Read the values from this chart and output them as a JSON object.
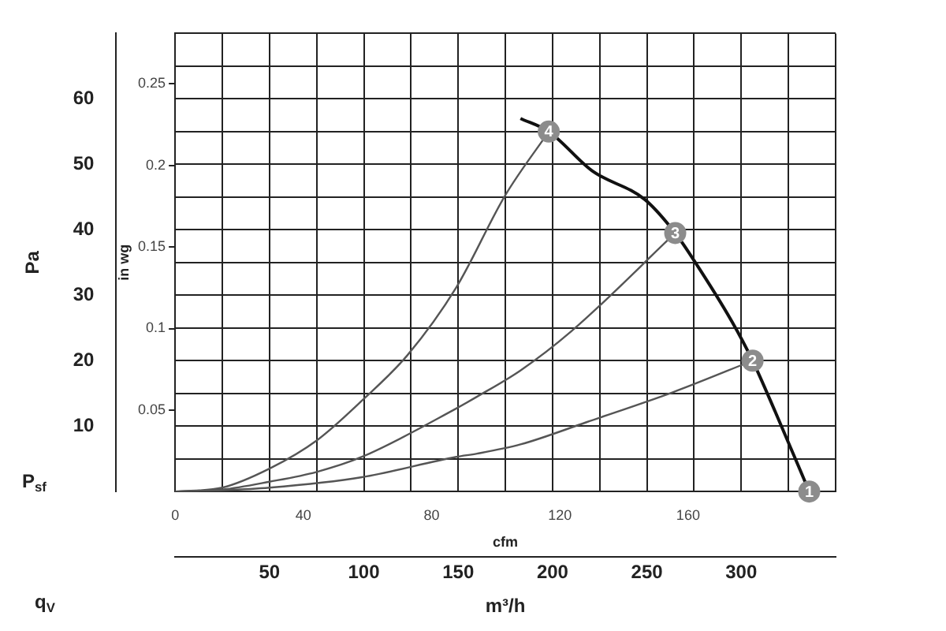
{
  "chart_data": {
    "type": "line",
    "xlabel": "m³/h",
    "x2label": "cfm",
    "ylabel": "Pa",
    "y2label": "in wg",
    "annotations": [
      "q$_{V}$",
      "P$_{sf}$",
      {
        "text": "1",
        "x": 336,
        "y": 0
      },
      {
        "text": "2",
        "x": 306,
        "y": 20
      },
      {
        "text": "3",
        "x": 265,
        "y": 39.5
      },
      {
        "text": "4",
        "x": 198,
        "y": 55
      }
    ],
    "xlim": [
      0,
      350
    ],
    "xticks": [
      {
        "value": 25,
        "label": null
      },
      50,
      {
        "value": 75,
        "label": null
      },
      100,
      {
        "value": 125,
        "label": null
      },
      150,
      {
        "value": 175,
        "label": null
      },
      200,
      {
        "value": 225,
        "label": null
      },
      250,
      {
        "value": 275,
        "label": null
      },
      300,
      {
        "value": 325,
        "label": null
      },
      {
        "value": 350,
        "label": null
      }
    ],
    "x2lim": [
      0,
      206
    ],
    "x2ticks": [
      0,
      40,
      80,
      120,
      160
    ],
    "ylim": [
      0,
      70
    ],
    "yticks": [
      {
        "value": 5,
        "label": null
      },
      10,
      {
        "value": 15,
        "label": null
      },
      20,
      {
        "value": 25,
        "label": null
      },
      30,
      {
        "value": 35,
        "label": null
      },
      40,
      {
        "value": 45,
        "label": null
      },
      50,
      {
        "value": 55,
        "label": null
      },
      60,
      {
        "value": 65,
        "label": null
      },
      {
        "value": 70,
        "label": null
      }
    ],
    "y2lim": [
      0,
      0.281
    ],
    "y2ticks": [
      0.05,
      0.1,
      0.15,
      0.2,
      0.25
    ],
    "grid": true,
    "legend": false,
    "marker": "none",
    "line_style": "solid",
    "series": [
      {
        "color": "#111111",
        "x": [
          183,
          198,
          221,
          249,
          265,
          275,
          295,
          306,
          318,
          336
        ],
        "values": [
          57,
          55,
          49,
          44.6,
          39.5,
          35.3,
          26,
          20,
          12.2,
          0
        ]
      },
      {
        "color": "#555555",
        "x": [
          0,
          25,
          50,
          75,
          99,
          123,
          149,
          175,
          198
        ],
        "values": [
          0,
          0.6,
          3.5,
          7.8,
          13.9,
          20.8,
          31.2,
          45.3,
          55
        ]
      },
      {
        "color": "#555555",
        "x": [
          0,
          25,
          50,
          75,
          99,
          149,
          160,
          183,
          210,
          265
        ],
        "values": [
          0,
          0.3,
          1.5,
          3,
          5.3,
          12.7,
          14.5,
          18.5,
          24.5,
          39.5
        ]
      },
      {
        "color": "#555555",
        "x": [
          0,
          25,
          50,
          99,
          149,
          160,
          183,
          218,
          264,
          306
        ],
        "values": [
          0,
          0.2,
          0.6,
          2.2,
          5.3,
          5.8,
          7.2,
          10.6,
          15.2,
          20
        ]
      }
    ]
  }
}
